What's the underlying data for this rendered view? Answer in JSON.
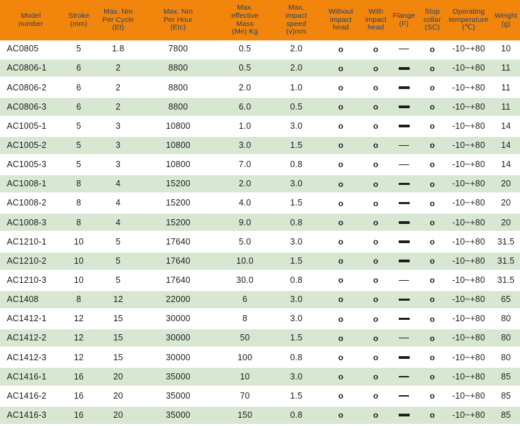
{
  "theme": {
    "header_bg": "#f2860d",
    "header_text": "#1e3f6e",
    "row_bg": "#ffffff",
    "row_alt_bg": "#d8e7d2",
    "body_text": "#1c1c1c"
  },
  "table": {
    "columns": [
      {
        "key": "model",
        "label": "Model\nnumber"
      },
      {
        "key": "stroke",
        "label": "Stroke\n(mm)"
      },
      {
        "key": "nm_per_cycle",
        "label": "Max. Nm\nPer Cycle\n(Et)"
      },
      {
        "key": "nm_per_hour",
        "label": "Max. Nm\nPer Hour\n(Etc)"
      },
      {
        "key": "effective_mass",
        "label": "Max.\neffective\nMass\n(Me) Kg"
      },
      {
        "key": "impact_speed",
        "label": "Max.\nimpact\nspeed\n(v)m/s"
      },
      {
        "key": "without_impact_head",
        "label": "Without\nimpact\nhead"
      },
      {
        "key": "with_impact_head",
        "label": "With\nimpact\nhead"
      },
      {
        "key": "flange",
        "label": "Flange\n(F)"
      },
      {
        "key": "stop_collar",
        "label": "Stop\ncollar\n(SC)"
      },
      {
        "key": "operating_temperature",
        "label": "Operating\ntemperature\n(℃)"
      },
      {
        "key": "weight",
        "label": "Weight\n(g)"
      }
    ],
    "symbols": {
      "available": "o",
      "dash_thin": "—",
      "dash_thick": "—"
    },
    "rows": [
      {
        "model": "AC0805",
        "stroke": "5",
        "nm_per_cycle": "1.8",
        "nm_per_hour": "7800",
        "effective_mass": "0.5",
        "impact_speed": "2.0",
        "without_impact_head": "o",
        "with_impact_head": "o",
        "flange": "thin",
        "stop_collar": "o",
        "operating_temperature": "-10~+80",
        "weight": "10"
      },
      {
        "model": "AC0806-1",
        "stroke": "6",
        "nm_per_cycle": "2",
        "nm_per_hour": "8800",
        "effective_mass": "0.5",
        "impact_speed": "2.0",
        "without_impact_head": "o",
        "with_impact_head": "o",
        "flange": "thick",
        "stop_collar": "o",
        "operating_temperature": "-10~+80",
        "weight": "11"
      },
      {
        "model": "AC0806-2",
        "stroke": "6",
        "nm_per_cycle": "2",
        "nm_per_hour": "8800",
        "effective_mass": "2.0",
        "impact_speed": "1.0",
        "without_impact_head": "o",
        "with_impact_head": "o",
        "flange": "thick",
        "stop_collar": "o",
        "operating_temperature": "-10~+80",
        "weight": "11"
      },
      {
        "model": "AC0806-3",
        "stroke": "6",
        "nm_per_cycle": "2",
        "nm_per_hour": "8800",
        "effective_mass": "6.0",
        "impact_speed": "0.5",
        "without_impact_head": "o",
        "with_impact_head": "o",
        "flange": "thick",
        "stop_collar": "o",
        "operating_temperature": "-10~+80",
        "weight": "11"
      },
      {
        "model": "AC1005-1",
        "stroke": "5",
        "nm_per_cycle": "3",
        "nm_per_hour": "10800",
        "effective_mass": "1.0",
        "impact_speed": "3.0",
        "without_impact_head": "o",
        "with_impact_head": "o",
        "flange": "thick",
        "stop_collar": "o",
        "operating_temperature": "-10~+80",
        "weight": "14"
      },
      {
        "model": "AC1005-2",
        "stroke": "5",
        "nm_per_cycle": "3",
        "nm_per_hour": "10800",
        "effective_mass": "3.0",
        "impact_speed": "1.5",
        "without_impact_head": "o",
        "with_impact_head": "o",
        "flange": "thin",
        "stop_collar": "o",
        "operating_temperature": "-10~+80",
        "weight": "14"
      },
      {
        "model": "AC1005-3",
        "stroke": "5",
        "nm_per_cycle": "3",
        "nm_per_hour": "10800",
        "effective_mass": "7.0",
        "impact_speed": "0.8",
        "without_impact_head": "o",
        "with_impact_head": "o",
        "flange": "thin",
        "stop_collar": "o",
        "operating_temperature": "-10~+80",
        "weight": "14"
      },
      {
        "model": "AC1008-1",
        "stroke": "8",
        "nm_per_cycle": "4",
        "nm_per_hour": "15200",
        "effective_mass": "2.0",
        "impact_speed": "3.0",
        "without_impact_head": "o",
        "with_impact_head": "o",
        "flange": "thick",
        "stop_collar": "o",
        "operating_temperature": "-10~+80",
        "weight": "20"
      },
      {
        "model": "AC1008-2",
        "stroke": "8",
        "nm_per_cycle": "4",
        "nm_per_hour": "15200",
        "effective_mass": "4.0",
        "impact_speed": "1.5",
        "without_impact_head": "o",
        "with_impact_head": "o",
        "flange": "thick",
        "stop_collar": "o",
        "operating_temperature": "-10~+80",
        "weight": "20"
      },
      {
        "model": "AC1008-3",
        "stroke": "8",
        "nm_per_cycle": "4",
        "nm_per_hour": "15200",
        "effective_mass": "9.0",
        "impact_speed": "0.8",
        "without_impact_head": "o",
        "with_impact_head": "o",
        "flange": "thick",
        "stop_collar": "o",
        "operating_temperature": "-10~+80",
        "weight": "20"
      },
      {
        "model": "AC1210-1",
        "stroke": "10",
        "nm_per_cycle": "5",
        "nm_per_hour": "17640",
        "effective_mass": "5.0",
        "impact_speed": "3.0",
        "without_impact_head": "o",
        "with_impact_head": "o",
        "flange": "thick",
        "stop_collar": "o",
        "operating_temperature": "-10~+80",
        "weight": "31.5"
      },
      {
        "model": "AC1210-2",
        "stroke": "10",
        "nm_per_cycle": "5",
        "nm_per_hour": "17640",
        "effective_mass": "10.0",
        "impact_speed": "1.5",
        "without_impact_head": "o",
        "with_impact_head": "o",
        "flange": "thick",
        "stop_collar": "o",
        "operating_temperature": "-10~+80",
        "weight": "31.5"
      },
      {
        "model": "AC1210-3",
        "stroke": "10",
        "nm_per_cycle": "5",
        "nm_per_hour": "17640",
        "effective_mass": "30.0",
        "impact_speed": "0.8",
        "without_impact_head": "o",
        "with_impact_head": "o",
        "flange": "thin",
        "stop_collar": "o",
        "operating_temperature": "-10~+80",
        "weight": "31.5"
      },
      {
        "model": "AC1408",
        "stroke": "8",
        "nm_per_cycle": "12",
        "nm_per_hour": "22000",
        "effective_mass": "6",
        "impact_speed": "3.0",
        "without_impact_head": "o",
        "with_impact_head": "o",
        "flange": "thick",
        "stop_collar": "o",
        "operating_temperature": "-10~+80",
        "weight": "65"
      },
      {
        "model": "AC1412-1",
        "stroke": "12",
        "nm_per_cycle": "15",
        "nm_per_hour": "30000",
        "effective_mass": "8",
        "impact_speed": "3.0",
        "without_impact_head": "o",
        "with_impact_head": "o",
        "flange": "thick",
        "stop_collar": "o",
        "operating_temperature": "-10~+80",
        "weight": "80"
      },
      {
        "model": "AC1412-2",
        "stroke": "12",
        "nm_per_cycle": "15",
        "nm_per_hour": "30000",
        "effective_mass": "50",
        "impact_speed": "1.5",
        "without_impact_head": "o",
        "with_impact_head": "o",
        "flange": "thin",
        "stop_collar": "o",
        "operating_temperature": "-10~+80",
        "weight": "80"
      },
      {
        "model": "AC1412-3",
        "stroke": "12",
        "nm_per_cycle": "15",
        "nm_per_hour": "30000",
        "effective_mass": "100",
        "impact_speed": "0.8",
        "without_impact_head": "o",
        "with_impact_head": "o",
        "flange": "thick",
        "stop_collar": "o",
        "operating_temperature": "-10~+80",
        "weight": "80"
      },
      {
        "model": "AC1416-1",
        "stroke": "16",
        "nm_per_cycle": "20",
        "nm_per_hour": "35000",
        "effective_mass": "10",
        "impact_speed": "3.0",
        "without_impact_head": "o",
        "with_impact_head": "o",
        "flange": "thin",
        "stop_collar": "o",
        "operating_temperature": "-10~+80",
        "weight": "85"
      },
      {
        "model": "AC1416-2",
        "stroke": "16",
        "nm_per_cycle": "20",
        "nm_per_hour": "35000",
        "effective_mass": "70",
        "impact_speed": "1.5",
        "without_impact_head": "o",
        "with_impact_head": "o",
        "flange": "thin",
        "stop_collar": "o",
        "operating_temperature": "-10~+80",
        "weight": "85"
      },
      {
        "model": "AC1416-3",
        "stroke": "16",
        "nm_per_cycle": "20",
        "nm_per_hour": "35000",
        "effective_mass": "150",
        "impact_speed": "0.8",
        "without_impact_head": "o",
        "with_impact_head": "o",
        "flange": "thick",
        "stop_collar": "o",
        "operating_temperature": "-10~+80",
        "weight": "85"
      }
    ]
  }
}
